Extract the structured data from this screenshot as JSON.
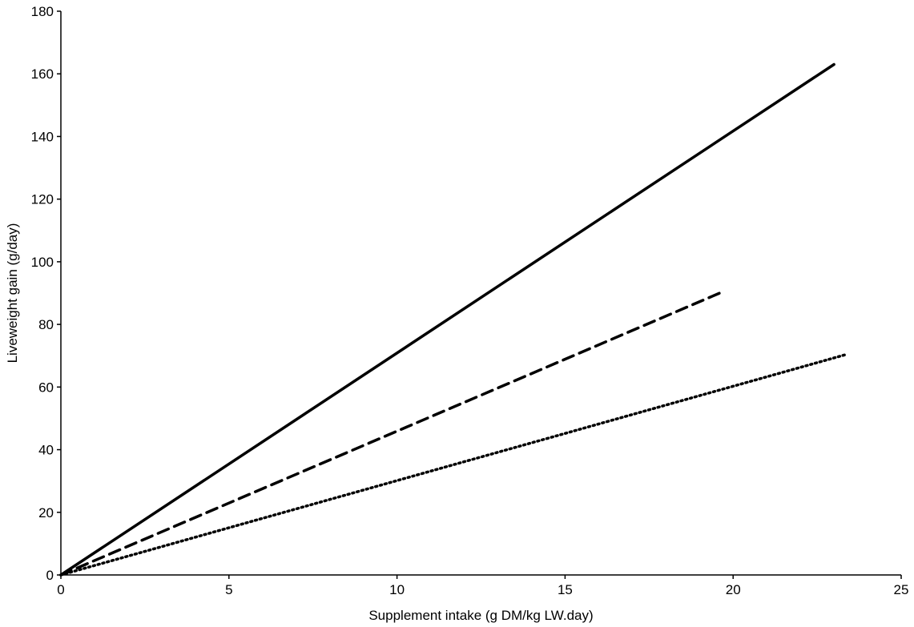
{
  "chart_data": {
    "type": "line",
    "title": "",
    "xlabel": "Supplement intake (g DM/kg LW.day)",
    "ylabel": "Liveweight gain (g/day)",
    "xlim": [
      0,
      25
    ],
    "ylim": [
      0,
      180
    ],
    "xticks": [
      0,
      5,
      10,
      15,
      20,
      25
    ],
    "yticks": [
      0,
      20,
      40,
      60,
      80,
      100,
      120,
      140,
      160,
      180
    ],
    "grid": false,
    "legend": "none",
    "series": [
      {
        "style": "solid",
        "color": "#000000",
        "x": [
          0,
          23
        ],
        "y": [
          0,
          163
        ]
      },
      {
        "style": "dashed",
        "color": "#000000",
        "x": [
          0,
          19.6
        ],
        "y": [
          0,
          90
        ]
      },
      {
        "style": "dotted",
        "color": "#000000",
        "x": [
          0,
          23.4
        ],
        "y": [
          0,
          70.5
        ]
      }
    ]
  }
}
